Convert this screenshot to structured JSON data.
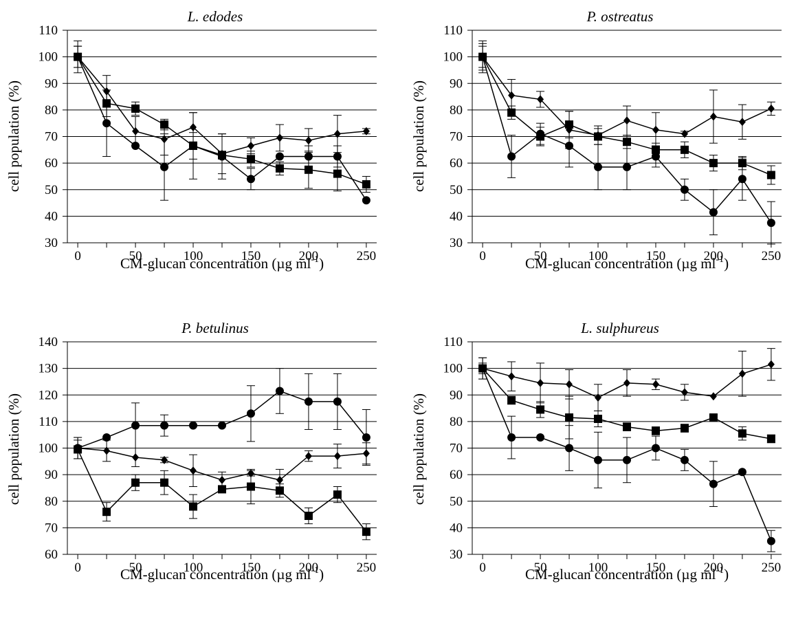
{
  "figure": {
    "panels": [
      {
        "title": "L. edodes",
        "xlabel": "CM-glucan concentration",
        "xunit": "(µg ml",
        "xunit_exp": "-1",
        "xunit_close": ")",
        "ylabel": "cell population (%)"
      },
      {
        "title": "P. ostreatus",
        "xlabel": "CM-glucan concentration",
        "xunit": "(µg ml",
        "xunit_exp": "-1",
        "xunit_close": ")",
        "ylabel": "cell population (%)"
      },
      {
        "title": "P. betulinus",
        "xlabel": "CM-glucan concentration",
        "xunit": "(µg ml",
        "xunit_exp": "-1",
        "xunit_close": ")",
        "ylabel": "cell population (%)"
      },
      {
        "title": "L. sulphureus",
        "xlabel": "CM-glucan concentration",
        "xunit": "(µg ml",
        "xunit_exp": "-1",
        "xunit_close": ")",
        "ylabel": "cell population (%)"
      }
    ]
  },
  "chart_data": [
    {
      "type": "line",
      "title": "L. edodes",
      "xlabel": "CM-glucan concentration (µg ml-1)",
      "ylabel": "cell population (%)",
      "x": [
        0,
        25,
        50,
        75,
        100,
        125,
        150,
        175,
        200,
        225,
        250
      ],
      "xticks": [
        0,
        50,
        100,
        150,
        200,
        250
      ],
      "yticks": [
        30,
        40,
        50,
        60,
        70,
        80,
        90,
        100,
        110
      ],
      "xlim": [
        -9,
        259
      ],
      "ylim": [
        30,
        110
      ],
      "grid": true,
      "series": [
        {
          "marker": "diamond",
          "values": [
            100,
            87,
            72,
            69,
            73.5,
            63.5,
            66.5,
            69.5,
            68.5,
            71,
            72
          ],
          "errors": [
            4,
            6,
            5.5,
            6,
            5.5,
            7.5,
            3,
            5,
            4.5,
            7,
            1
          ]
        },
        {
          "marker": "circle",
          "values": [
            100,
            75,
            66.5,
            58.5,
            66.5,
            62.5,
            54,
            62.5,
            62.5,
            62.5,
            46
          ],
          "errors": [
            4,
            12.5,
            0,
            12.5,
            12.5,
            8.5,
            4,
            0,
            4,
            4,
            0
          ]
        },
        {
          "marker": "square",
          "values": [
            100,
            82.5,
            80.5,
            74.5,
            66.5,
            63,
            61.5,
            58,
            57.5,
            56,
            52
          ],
          "errors": [
            6,
            5,
            2.5,
            2,
            5,
            1.5,
            3,
            2.5,
            7,
            6.5,
            3
          ]
        }
      ]
    },
    {
      "type": "line",
      "title": "P. ostreatus",
      "xlabel": "CM-glucan concentration (µg ml-1)",
      "ylabel": "cell population (%)",
      "x": [
        0,
        25,
        50,
        75,
        100,
        125,
        150,
        175,
        200,
        225,
        250
      ],
      "xticks": [
        0,
        50,
        100,
        150,
        200,
        250
      ],
      "yticks": [
        30,
        40,
        50,
        60,
        70,
        80,
        90,
        100,
        110
      ],
      "xlim": [
        -9,
        259
      ],
      "ylim": [
        30,
        110
      ],
      "grid": true,
      "series": [
        {
          "marker": "diamond",
          "values": [
            100,
            85.5,
            84,
            72.5,
            70.5,
            76,
            72.5,
            71,
            77.5,
            75.5,
            80.5
          ],
          "errors": [
            5,
            6,
            3,
            7,
            3.5,
            5.5,
            6.5,
            1,
            10,
            6.5,
            2.5
          ]
        },
        {
          "marker": "circle",
          "values": [
            100,
            62.5,
            71,
            66.5,
            58.5,
            58.5,
            62.5,
            50,
            41.5,
            54,
            37.5
          ],
          "errors": [
            4,
            8,
            4,
            8,
            8.5,
            8.5,
            4,
            4,
            8.5,
            8,
            8
          ]
        },
        {
          "marker": "square",
          "values": [
            100,
            79,
            70,
            74.5,
            70,
            68,
            65,
            65,
            60,
            60,
            55.5
          ],
          "errors": [
            6,
            2.5,
            3.5,
            5,
            3,
            2.5,
            2.5,
            3,
            3,
            2.5,
            3.5
          ]
        }
      ]
    },
    {
      "type": "line",
      "title": "P. betulinus",
      "xlabel": "CM-glucan concentration (µg ml-1)",
      "ylabel": "cell population (%)",
      "x": [
        0,
        25,
        50,
        75,
        100,
        125,
        150,
        175,
        200,
        225,
        250
      ],
      "xticks": [
        0,
        50,
        100,
        150,
        200,
        250
      ],
      "yticks": [
        60,
        70,
        80,
        90,
        100,
        110,
        120,
        130,
        140
      ],
      "xlim": [
        -9,
        259
      ],
      "ylim": [
        60,
        140
      ],
      "grid": true,
      "series": [
        {
          "marker": "circle",
          "values": [
            100,
            104,
            108.5,
            108.5,
            108.5,
            108.5,
            113,
            121.5,
            117.5,
            117.5,
            104
          ],
          "errors": [
            4,
            0,
            8.5,
            4,
            0,
            0,
            10.5,
            8.5,
            10.5,
            10.5,
            10.5
          ]
        },
        {
          "marker": "diamond",
          "values": [
            100,
            99,
            96.5,
            95.5,
            91.5,
            88,
            90.5,
            88,
            97,
            97,
            98
          ],
          "errors": [
            4,
            4,
            3.5,
            1,
            6,
            3,
            1,
            4,
            2,
            4.5,
            4
          ]
        },
        {
          "marker": "square",
          "values": [
            99.5,
            76,
            87,
            87,
            78,
            84.5,
            85.5,
            84,
            74.5,
            82.5,
            68.5
          ],
          "errors": [
            3.5,
            3.5,
            3,
            4.5,
            4.5,
            1,
            6.5,
            2.5,
            3,
            3,
            3
          ]
        }
      ]
    },
    {
      "type": "line",
      "title": "L. sulphureus",
      "xlabel": "CM-glucan concentration (µg ml-1)",
      "ylabel": "cell population (%)",
      "x": [
        0,
        25,
        50,
        75,
        100,
        125,
        150,
        175,
        200,
        225,
        250
      ],
      "xticks": [
        0,
        50,
        100,
        150,
        200,
        250
      ],
      "yticks": [
        30,
        40,
        50,
        60,
        70,
        80,
        90,
        100,
        110
      ],
      "xlim": [
        -9,
        259
      ],
      "ylim": [
        30,
        110
      ],
      "grid": true,
      "series": [
        {
          "marker": "diamond",
          "values": [
            100,
            97,
            94.5,
            94,
            89,
            94.5,
            94,
            91,
            89.5,
            98,
            101.5
          ],
          "errors": [
            4,
            5.5,
            7.5,
            5.5,
            5,
            5,
            2,
            3,
            0,
            8.5,
            6
          ]
        },
        {
          "marker": "circle",
          "values": [
            100,
            74,
            74,
            70,
            65.5,
            65.5,
            70,
            65.5,
            56.5,
            61,
            35
          ],
          "errors": [
            4,
            8,
            0,
            8.5,
            10.5,
            8.5,
            4.5,
            4,
            8.5,
            0,
            4
          ]
        },
        {
          "marker": "square",
          "values": [
            100,
            88,
            84.5,
            81.5,
            81,
            78,
            76.5,
            77.5,
            81.5,
            75.5,
            73.5
          ],
          "errors": [
            2,
            1.5,
            3,
            8,
            3,
            1.5,
            1.5,
            1.5,
            1,
            2.5,
            1.5
          ]
        }
      ]
    }
  ]
}
